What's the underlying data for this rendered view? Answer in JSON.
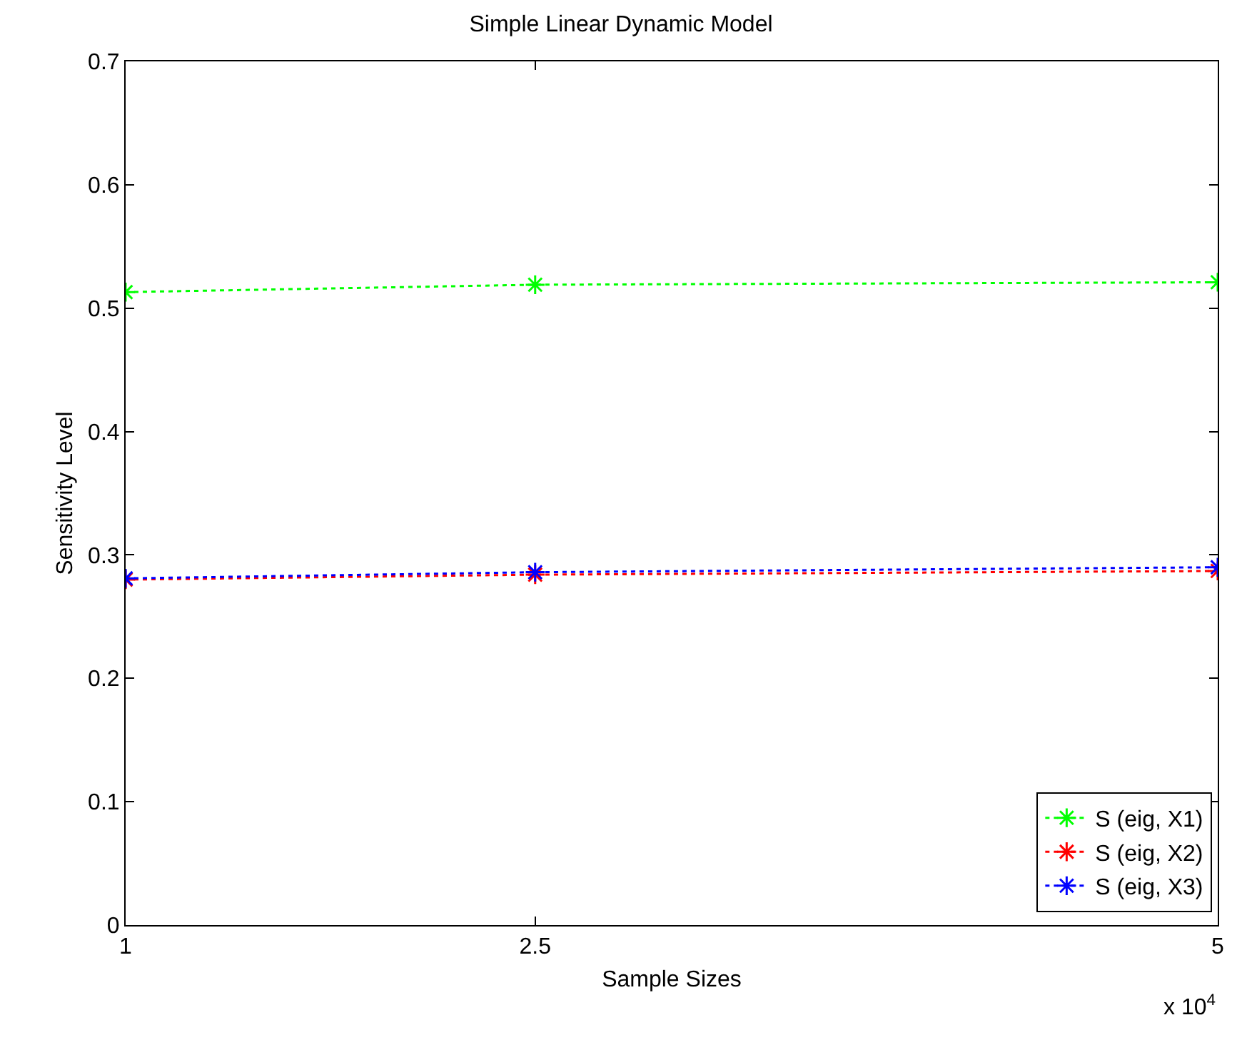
{
  "chart_data": {
    "type": "line",
    "title": "Simple Linear Dynamic Model",
    "xlabel": "Sample Sizes",
    "ylabel": "Sensitivity Level",
    "x": [
      1,
      2.5,
      5
    ],
    "series": [
      {
        "name": "S (eig, X1)",
        "color": "#00ff00",
        "values": [
          0.513,
          0.519,
          0.521
        ]
      },
      {
        "name": "S (eig, X2)",
        "color": "#ff0000",
        "values": [
          0.28,
          0.284,
          0.287
        ]
      },
      {
        "name": "S (eig, X3)",
        "color": "#0000ff",
        "values": [
          0.281,
          0.286,
          0.29
        ]
      }
    ],
    "xlim": [
      1,
      5
    ],
    "xticks": [
      1,
      2.5,
      5
    ],
    "ylim": [
      0,
      0.7
    ],
    "yticks": [
      0,
      0.1,
      0.2,
      0.3,
      0.4,
      0.5,
      0.6,
      0.7
    ],
    "annotations": [
      "x 10$^{4}$"
    ],
    "legend": "bottom right",
    "marker": "cross",
    "line_style": "dotted"
  }
}
